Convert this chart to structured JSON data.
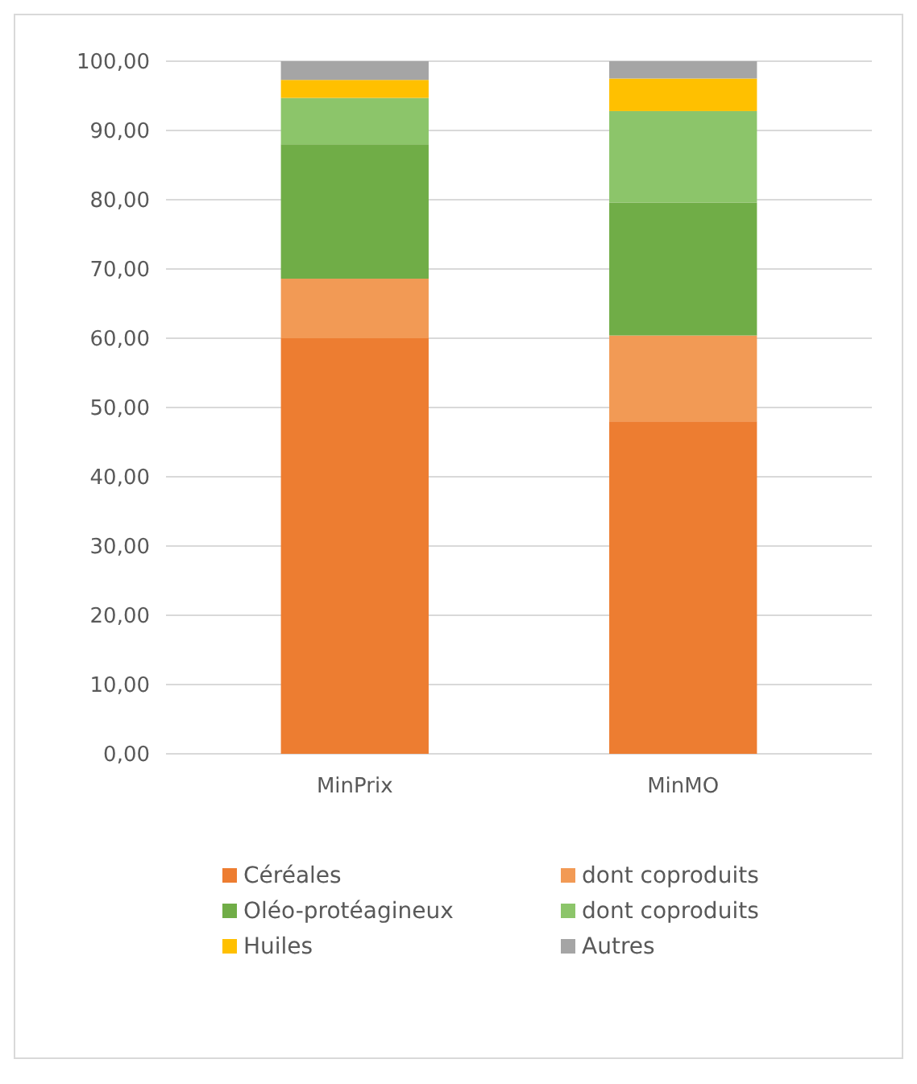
{
  "chart_data": {
    "type": "bar",
    "stacked": true,
    "categories": [
      "MinPrix",
      "MinMO"
    ],
    "series": [
      {
        "name": "Céréales",
        "color": "#ed7d31",
        "values": [
          60,
          48
        ]
      },
      {
        "name": "dont coproduits",
        "color": "#f29a55",
        "values": [
          8.6,
          12.4
        ]
      },
      {
        "name": "Oléo-protéagineux",
        "color": "#70ad47",
        "values": [
          19.4,
          19.2
        ]
      },
      {
        "name": "dont coproduits",
        "color": "#8cc56a",
        "values": [
          6.7,
          13.2
        ]
      },
      {
        "name": "Huiles",
        "color": "#ffc000",
        "values": [
          2.6,
          4.7
        ]
      },
      {
        "name": "Autres",
        "color": "#a5a5a5",
        "values": [
          2.7,
          2.5
        ]
      }
    ],
    "ylim": [
      0,
      100
    ],
    "yticks": [
      {
        "value": 0,
        "label": "0,00"
      },
      {
        "value": 10,
        "label": "10,00"
      },
      {
        "value": 20,
        "label": "20,00"
      },
      {
        "value": 30,
        "label": "30,00"
      },
      {
        "value": 40,
        "label": "40,00"
      },
      {
        "value": 50,
        "label": "50,00"
      },
      {
        "value": 60,
        "label": "60,00"
      },
      {
        "value": 70,
        "label": "70,00"
      },
      {
        "value": 80,
        "label": "80,00"
      },
      {
        "value": 90,
        "label": "90,00"
      },
      {
        "value": 100,
        "label": "100,00"
      }
    ],
    "grid": "y",
    "legend": "bottom"
  }
}
